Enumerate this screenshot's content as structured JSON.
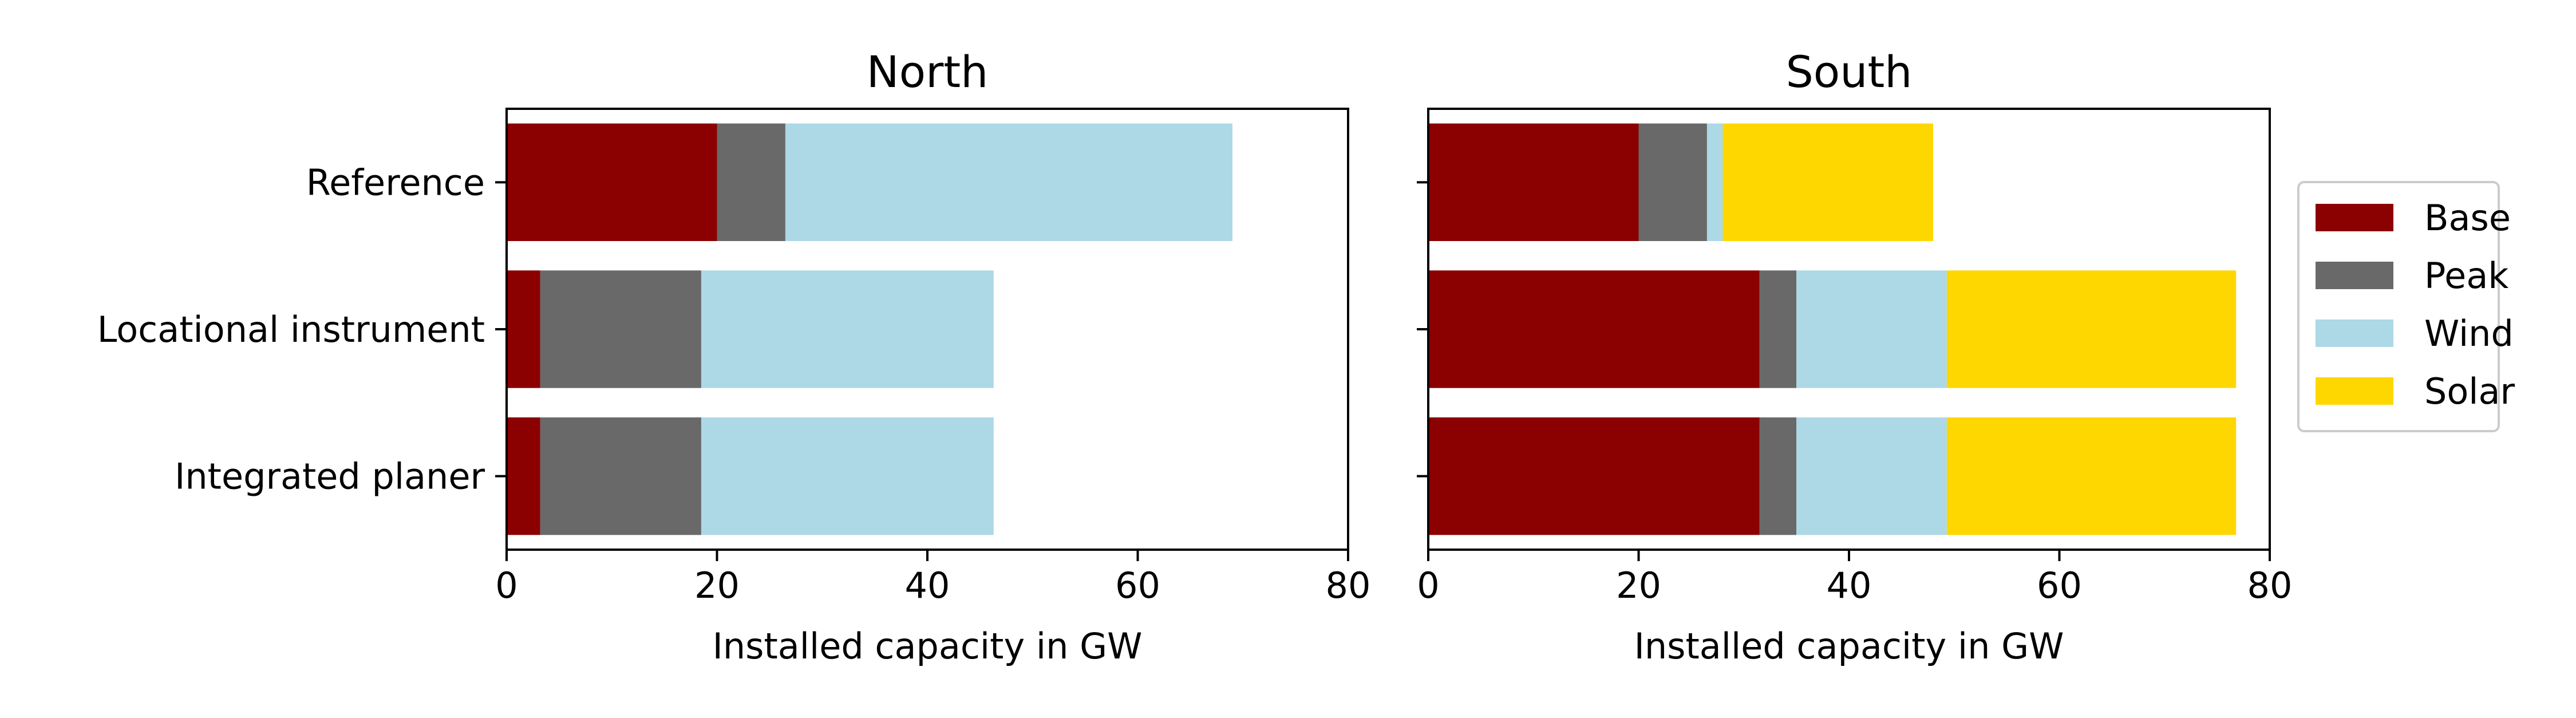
{
  "chart_data": {
    "type": "bar",
    "orientation": "horizontal",
    "stacked": true,
    "categories": [
      "Reference",
      "Locational instrument",
      "Integrated planer"
    ],
    "series_names": [
      "Base",
      "Peak",
      "Wind",
      "Solar"
    ],
    "colors": {
      "Base": "#8b0000",
      "Peak": "#696969",
      "Wind": "#add8e6",
      "Solar": "#ffd700"
    },
    "xlim": [
      0,
      80
    ],
    "xticks": [
      "0",
      "20",
      "40",
      "60",
      "80"
    ],
    "legend_position": "right",
    "grid": false,
    "panels": [
      {
        "title": "North",
        "xlabel": "Installed capacity in GW",
        "series": [
          {
            "name": "Base",
            "values": [
              20,
              3.2,
              3.2
            ]
          },
          {
            "name": "Peak",
            "values": [
              6.5,
              15.3,
              15.3
            ]
          },
          {
            "name": "Wind",
            "values": [
              42.5,
              27.8,
              27.8
            ]
          },
          {
            "name": "Solar",
            "values": [
              0,
              0,
              0
            ]
          }
        ]
      },
      {
        "title": "South",
        "xlabel": "Installed capacity in GW",
        "series": [
          {
            "name": "Base",
            "values": [
              20,
              31.5,
              31.5
            ]
          },
          {
            "name": "Peak",
            "values": [
              6.5,
              3.5,
              3.5
            ]
          },
          {
            "name": "Wind",
            "values": [
              1.5,
              14.3,
              14.3
            ]
          },
          {
            "name": "Solar",
            "values": [
              20,
              27.5,
              27.5
            ]
          }
        ]
      }
    ]
  }
}
